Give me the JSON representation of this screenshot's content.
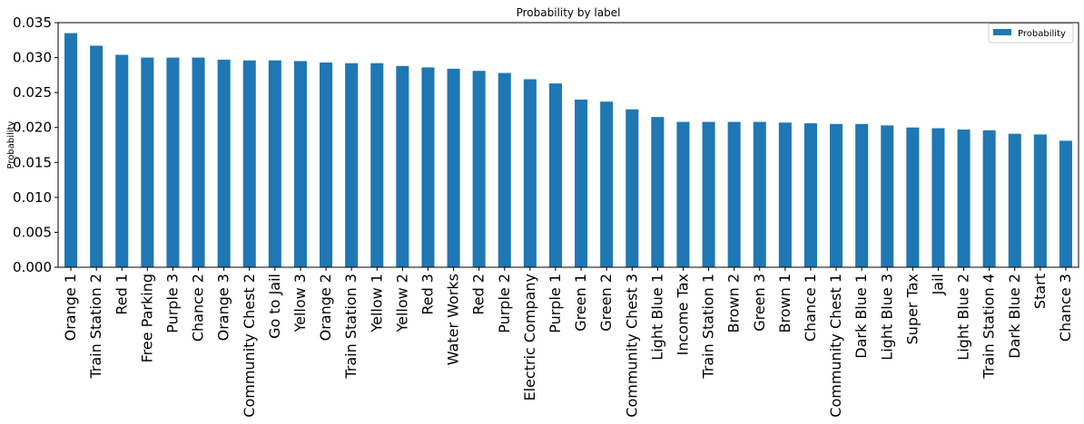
{
  "chart_data": {
    "type": "bar",
    "title": "Probability by label",
    "xlabel": "",
    "ylabel": "Probability",
    "ylim": [
      0,
      0.035
    ],
    "yticks": [
      "0.000",
      "0.005",
      "0.010",
      "0.015",
      "0.020",
      "0.025",
      "0.030",
      "0.035"
    ],
    "legend": {
      "position": "top-right"
    },
    "grid": false,
    "colors": {
      "bar": "#1f77b4"
    },
    "categories": [
      "Orange 1",
      "Train Station 2",
      "Red 1",
      "Free Parking",
      "Purple 3",
      "Chance 2",
      "Orange 3",
      "Community Chest 2",
      "Go to Jail",
      "Yellow 3",
      "Orange 2",
      "Train Station 3",
      "Yellow 1",
      "Yellow 2",
      "Red 3",
      "Water Works",
      "Red 2",
      "Purple 2",
      "Electric Company",
      "Purple 1",
      "Green 1",
      "Green 2",
      "Community Chest 3",
      "Light Blue 1",
      "Income Tax",
      "Train Station 1",
      "Brown 2",
      "Green 3",
      "Brown 1",
      "Chance 1",
      "Community Chest 1",
      "Dark Blue 1",
      "Light Blue 3",
      "Super Tax",
      "Jail",
      "Light Blue 2",
      "Train Station 4",
      "Dark Blue 2",
      "Start",
      "Chance 3"
    ],
    "series": [
      {
        "name": "Probability",
        "values": [
          0.0335,
          0.0317,
          0.0304,
          0.03,
          0.03,
          0.03,
          0.0297,
          0.0296,
          0.0296,
          0.0295,
          0.0293,
          0.0292,
          0.0292,
          0.0288,
          0.0286,
          0.0284,
          0.0281,
          0.0278,
          0.0269,
          0.0263,
          0.024,
          0.0237,
          0.0226,
          0.0215,
          0.0208,
          0.0208,
          0.0208,
          0.0208,
          0.0207,
          0.0206,
          0.0205,
          0.0205,
          0.0203,
          0.02,
          0.0199,
          0.0197,
          0.0196,
          0.0191,
          0.019,
          0.0181
        ]
      }
    ]
  }
}
